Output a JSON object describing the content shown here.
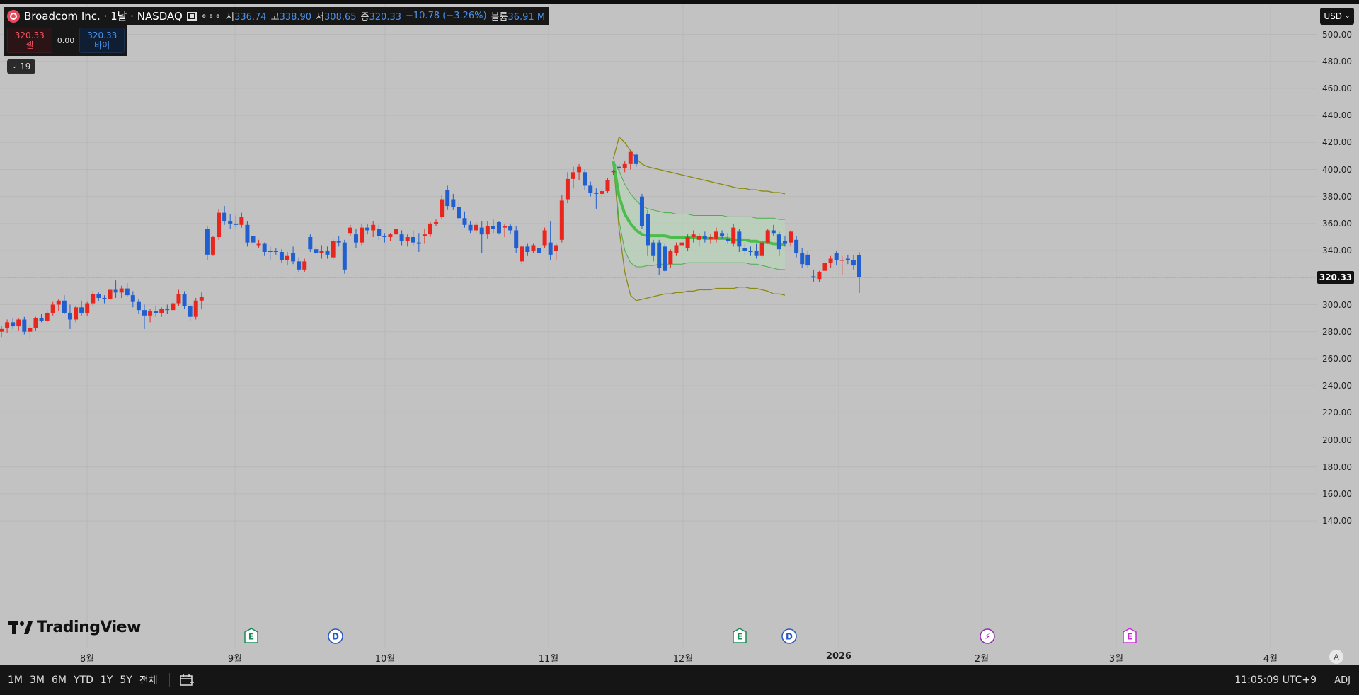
{
  "header": {
    "symbol": "Broadcom Inc. · 1날 · NASDAQ",
    "open_key": "시",
    "open_value": "336.74",
    "high_key": "고",
    "high_value": "338.90",
    "low_key": "저",
    "low_value": "308.65",
    "close_key": "종",
    "close_value": "320.33",
    "change": "−10.78 (−3.26%)",
    "volume_key": "볼륨",
    "volume_value": "36.91 M"
  },
  "trade": {
    "sell_price": "320.33",
    "sell_label": "셀",
    "spread": "0.00",
    "buy_price": "320.33",
    "buy_label": "바이"
  },
  "indicator_count": "19",
  "currency": "USD",
  "current_price": "320.33",
  "logo_text": "TradingView",
  "auto_scale_label": "A",
  "time_ranges": [
    "1M",
    "3M",
    "6M",
    "YTD",
    "1Y",
    "5Y",
    "전체"
  ],
  "clock": "11:05:09 UTC+9",
  "adj_label": "ADJ",
  "events": [
    {
      "type": "E",
      "label": "E",
      "date": "2025-09-04",
      "color": "#1b8a5a"
    },
    {
      "type": "D",
      "label": "D",
      "date": "2025-09-22",
      "color": "#2956c5"
    },
    {
      "type": "E",
      "label": "E",
      "date": "2025-12-11",
      "color": "#1b8a5a"
    },
    {
      "type": "D",
      "label": "D",
      "date": "2025-12-22",
      "color": "#2956c5"
    },
    {
      "type": "split",
      "label": "⚡",
      "date": "2026-02-03",
      "color": "#8e2fb0"
    },
    {
      "type": "E",
      "label": "E",
      "date": "2026-03-05",
      "color": "#c62fd8"
    }
  ],
  "colors": {
    "up": "#e8261e",
    "down": "#1f5fd0",
    "band_outer": "#8a8a12",
    "band_inner": "#4cae4c",
    "mid_line": "#4cbd4c",
    "band_fill": "#b8d8b8"
  },
  "chart_data": {
    "type": "candlestick",
    "symbol": "Broadcom Inc.",
    "interval": "1날",
    "exchange": "NASDAQ",
    "currency": "USD",
    "y_ticks": [
      140,
      160,
      180,
      200,
      220,
      240,
      260,
      280,
      300,
      320,
      340,
      360,
      380,
      400,
      420,
      440,
      460,
      480,
      500
    ],
    "y_tick_labels": [
      "140.00",
      "160.00",
      "180.00",
      "200.00",
      "220.00",
      "240.00",
      "260.00",
      "280.00",
      "300.00",
      "",
      "340.00",
      "360.00",
      "380.00",
      "400.00",
      "420.00",
      "440.00",
      "460.00",
      "480.00",
      "500.00"
    ],
    "x_ticks": [
      {
        "label": "8월",
        "bold": false
      },
      {
        "label": "9월",
        "bold": false
      },
      {
        "label": "10월",
        "bold": false
      },
      {
        "label": "11월",
        "bold": false
      },
      {
        "label": "12월",
        "bold": false
      },
      {
        "label": "2026",
        "bold": true
      },
      {
        "label": "2월",
        "bold": false
      },
      {
        "label": "3월",
        "bold": false
      },
      {
        "label": "4월",
        "bold": false
      }
    ],
    "current_price": 320.33,
    "candles": [
      {
        "o": 280,
        "h": 284,
        "l": 276,
        "c": 282
      },
      {
        "o": 283,
        "h": 289,
        "l": 279,
        "c": 287
      },
      {
        "o": 287,
        "h": 290,
        "l": 282,
        "c": 284
      },
      {
        "o": 284,
        "h": 290,
        "l": 281,
        "c": 289
      },
      {
        "o": 289,
        "h": 291,
        "l": 278,
        "c": 280
      },
      {
        "o": 280,
        "h": 285,
        "l": 274,
        "c": 283
      },
      {
        "o": 283,
        "h": 291,
        "l": 281,
        "c": 290
      },
      {
        "o": 290,
        "h": 293,
        "l": 287,
        "c": 288
      },
      {
        "o": 288,
        "h": 296,
        "l": 286,
        "c": 294
      },
      {
        "o": 294,
        "h": 302,
        "l": 292,
        "c": 300
      },
      {
        "o": 300,
        "h": 304,
        "l": 295,
        "c": 303
      },
      {
        "o": 303,
        "h": 307,
        "l": 293,
        "c": 294
      },
      {
        "o": 294,
        "h": 300,
        "l": 282,
        "c": 289
      },
      {
        "o": 289,
        "h": 299,
        "l": 287,
        "c": 298
      },
      {
        "o": 298,
        "h": 303,
        "l": 292,
        "c": 294
      },
      {
        "o": 294,
        "h": 302,
        "l": 292,
        "c": 301
      },
      {
        "o": 301,
        "h": 310,
        "l": 299,
        "c": 308
      },
      {
        "o": 308,
        "h": 309,
        "l": 303,
        "c": 305
      },
      {
        "o": 305,
        "h": 307,
        "l": 301,
        "c": 304
      },
      {
        "o": 304,
        "h": 312,
        "l": 302,
        "c": 311
      },
      {
        "o": 311,
        "h": 318,
        "l": 305,
        "c": 309
      },
      {
        "o": 309,
        "h": 314,
        "l": 305,
        "c": 312
      },
      {
        "o": 312,
        "h": 316,
        "l": 306,
        "c": 307
      },
      {
        "o": 307,
        "h": 310,
        "l": 298,
        "c": 302
      },
      {
        "o": 302,
        "h": 304,
        "l": 293,
        "c": 296
      },
      {
        "o": 296,
        "h": 300,
        "l": 282,
        "c": 292
      },
      {
        "o": 292,
        "h": 297,
        "l": 287,
        "c": 295
      },
      {
        "o": 295,
        "h": 299,
        "l": 291,
        "c": 294
      },
      {
        "o": 294,
        "h": 298,
        "l": 291,
        "c": 297
      },
      {
        "o": 297,
        "h": 300,
        "l": 293,
        "c": 296
      },
      {
        "o": 296,
        "h": 303,
        "l": 295,
        "c": 301
      },
      {
        "o": 301,
        "h": 311,
        "l": 299,
        "c": 308
      },
      {
        "o": 308,
        "h": 310,
        "l": 297,
        "c": 299
      },
      {
        "o": 299,
        "h": 300,
        "l": 288,
        "c": 291
      },
      {
        "o": 291,
        "h": 305,
        "l": 289,
        "c": 303
      },
      {
        "o": 303,
        "h": 309,
        "l": 297,
        "c": 306
      },
      {
        "o": 356,
        "h": 358,
        "l": 333,
        "c": 337
      },
      {
        "o": 337,
        "h": 351,
        "l": 336,
        "c": 350
      },
      {
        "o": 350,
        "h": 371,
        "l": 348,
        "c": 368
      },
      {
        "o": 368,
        "h": 373,
        "l": 359,
        "c": 362
      },
      {
        "o": 362,
        "h": 367,
        "l": 356,
        "c": 360
      },
      {
        "o": 360,
        "h": 366,
        "l": 357,
        "c": 359
      },
      {
        "o": 359,
        "h": 368,
        "l": 357,
        "c": 365
      },
      {
        "o": 359,
        "h": 362,
        "l": 343,
        "c": 346
      },
      {
        "o": 351,
        "h": 353,
        "l": 343,
        "c": 346
      },
      {
        "o": 344,
        "h": 348,
        "l": 342,
        "c": 345
      },
      {
        "o": 345,
        "h": 346,
        "l": 336,
        "c": 339
      },
      {
        "o": 340,
        "h": 343,
        "l": 333,
        "c": 339
      },
      {
        "o": 340,
        "h": 342,
        "l": 337,
        "c": 339
      },
      {
        "o": 339,
        "h": 341,
        "l": 331,
        "c": 333
      },
      {
        "o": 333,
        "h": 339,
        "l": 329,
        "c": 336
      },
      {
        "o": 338,
        "h": 343,
        "l": 330,
        "c": 332
      },
      {
        "o": 332,
        "h": 335,
        "l": 324,
        "c": 326
      },
      {
        "o": 326,
        "h": 334,
        "l": 324,
        "c": 332
      },
      {
        "o": 350,
        "h": 352,
        "l": 339,
        "c": 341
      },
      {
        "o": 341,
        "h": 343,
        "l": 337,
        "c": 338
      },
      {
        "o": 338,
        "h": 344,
        "l": 334,
        "c": 340
      },
      {
        "o": 340,
        "h": 343,
        "l": 334,
        "c": 337
      },
      {
        "o": 335,
        "h": 349,
        "l": 333,
        "c": 347
      },
      {
        "o": 347,
        "h": 351,
        "l": 343,
        "c": 346
      },
      {
        "o": 346,
        "h": 348,
        "l": 323,
        "c": 326
      },
      {
        "o": 353,
        "h": 359,
        "l": 351,
        "c": 357
      },
      {
        "o": 352,
        "h": 356,
        "l": 342,
        "c": 346
      },
      {
        "o": 346,
        "h": 360,
        "l": 344,
        "c": 357
      },
      {
        "o": 357,
        "h": 360,
        "l": 352,
        "c": 355
      },
      {
        "o": 355,
        "h": 362,
        "l": 350,
        "c": 359
      },
      {
        "o": 356,
        "h": 359,
        "l": 348,
        "c": 351
      },
      {
        "o": 351,
        "h": 353,
        "l": 346,
        "c": 350
      },
      {
        "o": 350,
        "h": 353,
        "l": 347,
        "c": 352
      },
      {
        "o": 352,
        "h": 358,
        "l": 349,
        "c": 356
      },
      {
        "o": 352,
        "h": 355,
        "l": 344,
        "c": 347
      },
      {
        "o": 347,
        "h": 352,
        "l": 343,
        "c": 350
      },
      {
        "o": 350,
        "h": 355,
        "l": 344,
        "c": 346
      },
      {
        "o": 346,
        "h": 353,
        "l": 339,
        "c": 345
      },
      {
        "o": 351,
        "h": 356,
        "l": 345,
        "c": 352
      },
      {
        "o": 352,
        "h": 361,
        "l": 350,
        "c": 360
      },
      {
        "o": 360,
        "h": 363,
        "l": 358,
        "c": 361
      },
      {
        "o": 365,
        "h": 381,
        "l": 363,
        "c": 378
      },
      {
        "o": 385,
        "h": 388,
        "l": 370,
        "c": 373
      },
      {
        "o": 378,
        "h": 382,
        "l": 370,
        "c": 372
      },
      {
        "o": 372,
        "h": 376,
        "l": 362,
        "c": 364
      },
      {
        "o": 364,
        "h": 369,
        "l": 357,
        "c": 359
      },
      {
        "o": 359,
        "h": 362,
        "l": 353,
        "c": 355
      },
      {
        "o": 355,
        "h": 361,
        "l": 353,
        "c": 359
      },
      {
        "o": 357,
        "h": 362,
        "l": 338,
        "c": 352
      },
      {
        "o": 352,
        "h": 362,
        "l": 349,
        "c": 358
      },
      {
        "o": 358,
        "h": 363,
        "l": 353,
        "c": 356
      },
      {
        "o": 361,
        "h": 362,
        "l": 352,
        "c": 353
      },
      {
        "o": 357,
        "h": 360,
        "l": 350,
        "c": 358
      },
      {
        "o": 358,
        "h": 360,
        "l": 352,
        "c": 355
      },
      {
        "o": 355,
        "h": 358,
        "l": 338,
        "c": 342
      },
      {
        "o": 332,
        "h": 344,
        "l": 330,
        "c": 343
      },
      {
        "o": 343,
        "h": 345,
        "l": 336,
        "c": 339
      },
      {
        "o": 340,
        "h": 345,
        "l": 338,
        "c": 344
      },
      {
        "o": 342,
        "h": 347,
        "l": 335,
        "c": 338
      },
      {
        "o": 344,
        "h": 357,
        "l": 342,
        "c": 355
      },
      {
        "o": 346,
        "h": 362,
        "l": 333,
        "c": 337
      },
      {
        "o": 340,
        "h": 345,
        "l": 333,
        "c": 344
      },
      {
        "o": 348,
        "h": 381,
        "l": 346,
        "c": 377
      },
      {
        "o": 378,
        "h": 398,
        "l": 375,
        "c": 393
      },
      {
        "o": 393,
        "h": 402,
        "l": 386,
        "c": 398
      },
      {
        "o": 398,
        "h": 404,
        "l": 392,
        "c": 402
      },
      {
        "o": 398,
        "h": 400,
        "l": 385,
        "c": 388
      },
      {
        "o": 388,
        "h": 391,
        "l": 380,
        "c": 383
      },
      {
        "o": 383,
        "h": 386,
        "l": 371,
        "c": 382
      },
      {
        "o": 382,
        "h": 386,
        "l": 379,
        "c": 384
      },
      {
        "o": 384,
        "h": 394,
        "l": 383,
        "c": 392
      },
      {
        "o": 398,
        "h": 400,
        "l": 396,
        "c": 399
      },
      {
        "o": 402,
        "h": 404,
        "l": 399,
        "c": 401
      },
      {
        "o": 401,
        "h": 406,
        "l": 398,
        "c": 404
      },
      {
        "o": 404,
        "h": 414,
        "l": 400,
        "c": 413
      },
      {
        "o": 411,
        "h": 412,
        "l": 402,
        "c": 404
      },
      {
        "o": 380,
        "h": 382,
        "l": 356,
        "c": 358
      },
      {
        "o": 367,
        "h": 370,
        "l": 336,
        "c": 344
      },
      {
        "o": 346,
        "h": 348,
        "l": 332,
        "c": 336
      },
      {
        "o": 346,
        "h": 348,
        "l": 322,
        "c": 327
      },
      {
        "o": 343,
        "h": 345,
        "l": 324,
        "c": 325
      },
      {
        "o": 330,
        "h": 341,
        "l": 327,
        "c": 340
      },
      {
        "o": 338,
        "h": 346,
        "l": 336,
        "c": 344
      },
      {
        "o": 344,
        "h": 348,
        "l": 342,
        "c": 346
      },
      {
        "o": 342,
        "h": 352,
        "l": 340,
        "c": 350
      },
      {
        "o": 350,
        "h": 355,
        "l": 346,
        "c": 352
      },
      {
        "o": 348,
        "h": 353,
        "l": 343,
        "c": 351
      },
      {
        "o": 351,
        "h": 354,
        "l": 346,
        "c": 349
      },
      {
        "o": 349,
        "h": 352,
        "l": 345,
        "c": 350
      },
      {
        "o": 349,
        "h": 357,
        "l": 346,
        "c": 354
      },
      {
        "o": 353,
        "h": 355,
        "l": 349,
        "c": 351
      },
      {
        "o": 349,
        "h": 353,
        "l": 345,
        "c": 347
      },
      {
        "o": 345,
        "h": 360,
        "l": 343,
        "c": 357
      },
      {
        "o": 354,
        "h": 356,
        "l": 339,
        "c": 343
      },
      {
        "o": 342,
        "h": 346,
        "l": 337,
        "c": 340
      },
      {
        "o": 340,
        "h": 343,
        "l": 336,
        "c": 339
      },
      {
        "o": 340,
        "h": 345,
        "l": 334,
        "c": 336
      },
      {
        "o": 336,
        "h": 347,
        "l": 335,
        "c": 346
      },
      {
        "o": 346,
        "h": 356,
        "l": 345,
        "c": 355
      },
      {
        "o": 355,
        "h": 359,
        "l": 351,
        "c": 353
      },
      {
        "o": 352,
        "h": 354,
        "l": 336,
        "c": 341
      },
      {
        "o": 347,
        "h": 351,
        "l": 343,
        "c": 345
      },
      {
        "o": 346,
        "h": 355,
        "l": 343,
        "c": 354
      },
      {
        "o": 348,
        "h": 351,
        "l": 335,
        "c": 338
      },
      {
        "o": 338,
        "h": 342,
        "l": 327,
        "c": 330
      },
      {
        "o": 337,
        "h": 340,
        "l": 327,
        "c": 329
      },
      {
        "o": 321,
        "h": 326,
        "l": 317,
        "c": 320
      },
      {
        "o": 319,
        "h": 325,
        "l": 317,
        "c": 324
      },
      {
        "o": 325,
        "h": 333,
        "l": 322,
        "c": 331
      },
      {
        "o": 331,
        "h": 336,
        "l": 327,
        "c": 334
      },
      {
        "o": 338,
        "h": 340,
        "l": 329,
        "c": 333
      },
      {
        "o": 333,
        "h": 336,
        "l": 322,
        "c": 333
      },
      {
        "o": 334,
        "h": 337,
        "l": 330,
        "c": 333
      },
      {
        "o": 333,
        "h": 337,
        "l": 326,
        "c": 329
      },
      {
        "o": 336.74,
        "h": 338.9,
        "l": 308.65,
        "c": 320.33
      }
    ],
    "band_start_index": 107,
    "band": {
      "mid": [
        406,
        380,
        367,
        360,
        355,
        352,
        351,
        351,
        351,
        351,
        350,
        350,
        350,
        350,
        350,
        350,
        349,
        349,
        349,
        349,
        349,
        348,
        348,
        348,
        347,
        347,
        346,
        346,
        345,
        345,
        344
      ],
      "upper": [
        408,
        424,
        420,
        414,
        408,
        404,
        402,
        401,
        400,
        399,
        398,
        397,
        396,
        395,
        394,
        393,
        392,
        391,
        390,
        389,
        388,
        387,
        386,
        386,
        385,
        385,
        384,
        384,
        383,
        383,
        382
      ],
      "lower": [
        406,
        356,
        324,
        307,
        303,
        304,
        305,
        306,
        307,
        308,
        308,
        309,
        309,
        310,
        310,
        311,
        311,
        311,
        312,
        312,
        312,
        312,
        313,
        313,
        312,
        312,
        311,
        310,
        308,
        308,
        307
      ],
      "inner_upper": [
        406,
        399,
        389,
        382,
        377,
        373,
        371,
        370,
        369,
        368,
        368,
        367,
        367,
        367,
        366,
        366,
        366,
        366,
        366,
        366,
        365,
        365,
        365,
        365,
        365,
        364,
        364,
        364,
        364,
        363,
        363
      ],
      "inner_lower": [
        406,
        362,
        340,
        331,
        328,
        328,
        329,
        329,
        330,
        330,
        330,
        330,
        330,
        331,
        331,
        331,
        331,
        331,
        331,
        331,
        331,
        331,
        331,
        331,
        330,
        330,
        329,
        328,
        327,
        326,
        326
      ]
    }
  }
}
